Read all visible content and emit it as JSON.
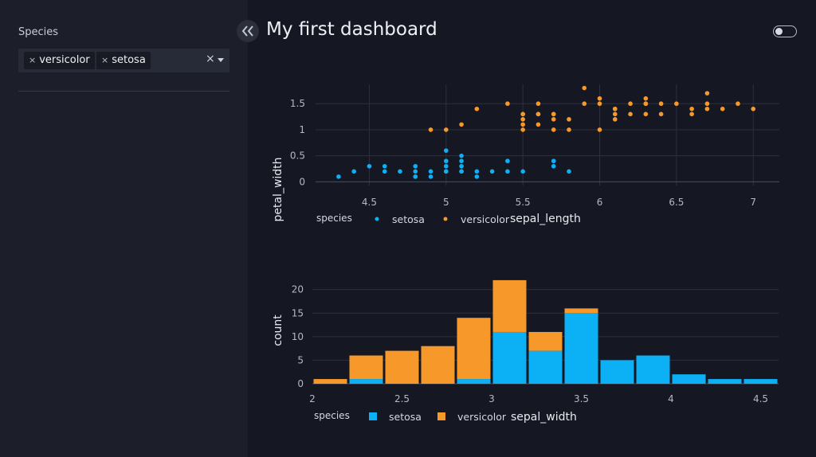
{
  "sidebar": {
    "filter_label": "Species",
    "selected": [
      "versicolor",
      "setosa"
    ],
    "chip_remove": "×",
    "clear": "×"
  },
  "header": {
    "title": "My first dashboard"
  },
  "colors": {
    "setosa": "#0bb0f5",
    "versicolor": "#f7982b"
  },
  "chart_data": [
    {
      "type": "scatter",
      "title": "",
      "xlabel": "sepal_length",
      "ylabel": "petal_width",
      "xlim": [
        4.15,
        7.17
      ],
      "ylim": [
        -0.07,
        1.87
      ],
      "xticks": [
        4.5,
        5,
        5.5,
        6,
        6.5,
        7
      ],
      "xtick_labels": [
        "4.5",
        "5",
        "5.5",
        "6",
        "6.5",
        "7"
      ],
      "yticks": [
        0,
        0.5,
        1,
        1.5
      ],
      "ytick_labels": [
        "0",
        "0.5",
        "1",
        "1.5"
      ],
      "legend_title": "species",
      "series": [
        {
          "name": "setosa",
          "x": [
            4.3,
            4.4,
            4.5,
            4.6,
            4.6,
            4.7,
            4.8,
            4.8,
            4.8,
            4.8,
            4.9,
            4.9,
            5.0,
            5.0,
            5.0,
            5.0,
            5.0,
            5.1,
            5.1,
            5.1,
            5.1,
            5.1,
            5.2,
            5.2,
            5.3,
            5.4,
            5.4,
            5.5,
            5.7,
            5.7,
            5.8
          ],
          "y": [
            0.1,
            0.2,
            0.3,
            0.2,
            0.3,
            0.2,
            0.1,
            0.2,
            0.3,
            0.1,
            0.2,
            0.1,
            0.2,
            0.3,
            0.4,
            0.6,
            0.2,
            0.2,
            0.3,
            0.4,
            0.5,
            0.2,
            0.2,
            0.1,
            0.2,
            0.2,
            0.4,
            0.2,
            0.3,
            0.4,
            0.2
          ]
        },
        {
          "name": "versicolor",
          "x": [
            4.9,
            5.0,
            5.1,
            5.2,
            5.4,
            5.5,
            5.5,
            5.5,
            5.5,
            5.5,
            5.6,
            5.6,
            5.6,
            5.6,
            5.7,
            5.7,
            5.7,
            5.7,
            5.8,
            5.8,
            5.9,
            5.9,
            6.0,
            6.0,
            6.0,
            6.1,
            6.1,
            6.1,
            6.1,
            6.2,
            6.2,
            6.3,
            6.3,
            6.3,
            6.3,
            6.4,
            6.4,
            6.5,
            6.6,
            6.6,
            6.7,
            6.7,
            6.7,
            6.8,
            6.9,
            7.0
          ],
          "y": [
            1.0,
            1.0,
            1.1,
            1.4,
            1.5,
            1.0,
            1.1,
            1.2,
            1.3,
            1.3,
            1.1,
            1.3,
            1.3,
            1.5,
            1.0,
            1.2,
            1.3,
            1.3,
            1.0,
            1.2,
            1.8,
            1.5,
            1.0,
            1.5,
            1.6,
            1.2,
            1.3,
            1.4,
            1.4,
            1.3,
            1.5,
            1.3,
            1.5,
            1.5,
            1.6,
            1.3,
            1.5,
            1.5,
            1.3,
            1.4,
            1.4,
            1.5,
            1.7,
            1.4,
            1.5,
            1.4
          ]
        }
      ]
    },
    {
      "type": "bar",
      "barmode": "stack",
      "title": "",
      "xlabel": "sepal_width",
      "ylabel": "count",
      "xlim": [
        2.0,
        4.6
      ],
      "ylim": [
        0,
        23
      ],
      "xticks": [
        2,
        2.5,
        3,
        3.5,
        4,
        4.5
      ],
      "xtick_labels": [
        "2",
        "2.5",
        "3",
        "3.5",
        "4",
        "4.5"
      ],
      "yticks": [
        0,
        5,
        10,
        15,
        20
      ],
      "ytick_labels": [
        "0",
        "5",
        "10",
        "15",
        "20"
      ],
      "legend_title": "species",
      "bin_starts": [
        2.0,
        2.2,
        2.4,
        2.6,
        2.8,
        3.0,
        3.2,
        3.4,
        3.6,
        3.8,
        4.0,
        4.2,
        4.4
      ],
      "bin_width": 0.2,
      "series": [
        {
          "name": "setosa",
          "values": [
            0,
            1,
            0,
            0,
            1,
            11,
            7,
            15,
            5,
            6,
            2,
            1,
            1
          ]
        },
        {
          "name": "versicolor",
          "values": [
            1,
            5,
            7,
            8,
            13,
            11,
            4,
            1,
            0,
            0,
            0,
            0,
            0
          ]
        }
      ]
    }
  ]
}
